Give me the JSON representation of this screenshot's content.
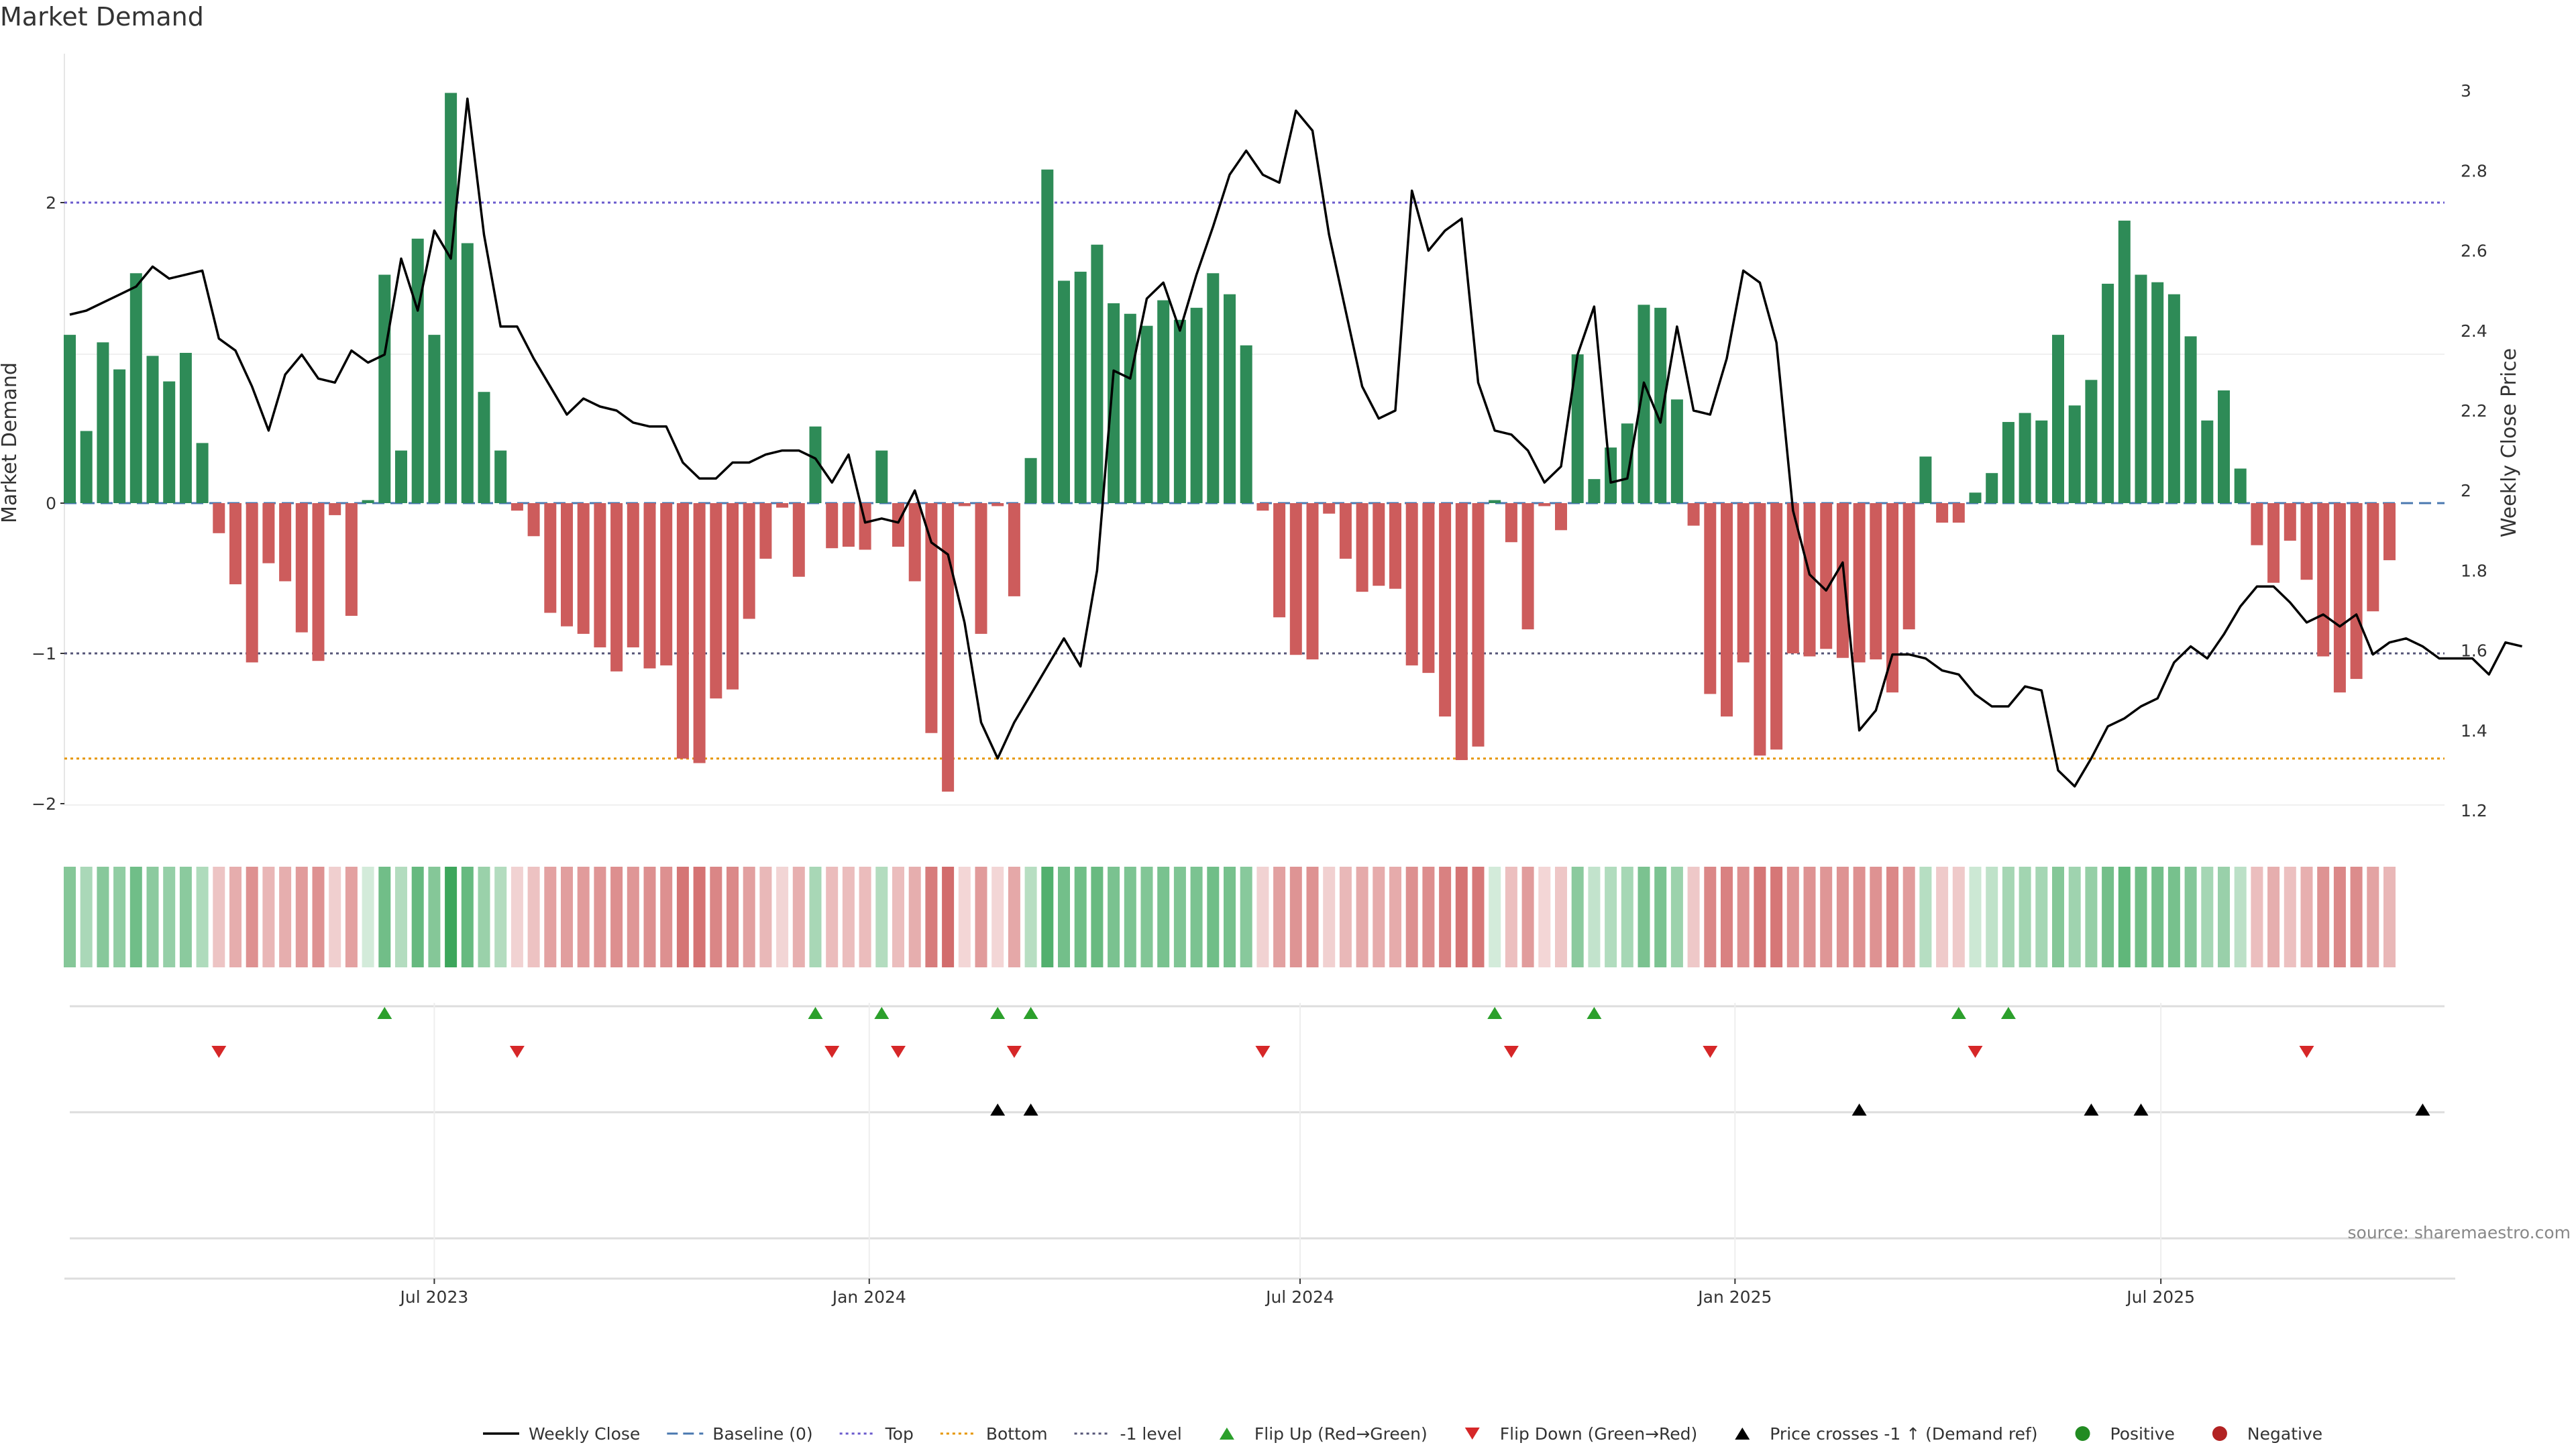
{
  "chart_data": {
    "type": "bar",
    "title": "Market Demand",
    "ylabel": "Market Demand",
    "y2label": "Weekly Close Price",
    "ylim": [
      -2.1,
      2.8
    ],
    "y2lim": [
      1.2,
      3.02
    ],
    "yticks": [
      -2,
      -1,
      0,
      2
    ],
    "ytick_labels": [
      "−2",
      "−1",
      "0",
      "2"
    ],
    "y2ticks": [
      1.2,
      1.4,
      1.6,
      1.8,
      2,
      2.2,
      2.4,
      2.6,
      2.8,
      3
    ],
    "y2tick_labels": [
      "1.2",
      "1.4",
      "1.6",
      "1.8",
      "2",
      "2.2",
      "2.4",
      "2.6",
      "2.8",
      "3"
    ],
    "xticks": [
      {
        "week": 22,
        "label": "Jul 2023"
      },
      {
        "week": 48.25,
        "label": "Jan 2024"
      },
      {
        "week": 74.25,
        "label": "Jul 2024"
      },
      {
        "week": 100.5,
        "label": "Jan 2025"
      },
      {
        "week": 126.2,
        "label": "Jul 2025"
      }
    ],
    "reference_lines": {
      "top": 2.0,
      "bottom": -1.7,
      "minus_one": -1.0,
      "baseline": 0
    },
    "series": [
      {
        "name": "Market Demand",
        "values": [
          1.12,
          0.48,
          1.07,
          0.89,
          1.53,
          0.98,
          0.81,
          1.0,
          0.4,
          -0.2,
          -0.54,
          -1.06,
          -0.4,
          -0.52,
          -0.86,
          -1.05,
          -0.08,
          -0.75,
          0.02,
          1.52,
          0.35,
          1.76,
          1.12,
          2.73,
          1.73,
          0.74,
          0.35,
          -0.05,
          -0.22,
          -0.73,
          -0.82,
          -0.87,
          -0.96,
          -1.12,
          -0.96,
          -1.1,
          -1.08,
          -1.7,
          -1.73,
          -1.3,
          -1.24,
          -0.77,
          -0.37,
          -0.03,
          -0.49,
          0.51,
          -0.3,
          -0.29,
          -0.31,
          0.35,
          -0.29,
          -0.52,
          -1.53,
          -1.92,
          -0.02,
          -0.87,
          -0.02,
          -0.62,
          0.3,
          2.22,
          1.48,
          1.54,
          1.72,
          1.33,
          1.26,
          1.18,
          1.35,
          1.22,
          1.3,
          1.53,
          1.39,
          1.05,
          -0.05,
          -0.76,
          -1.01,
          -1.04,
          -0.07,
          -0.37,
          -0.59,
          -0.55,
          -0.57,
          -1.08,
          -1.13,
          -1.42,
          -1.71,
          -1.62,
          0.02,
          -0.26,
          -0.84,
          -0.02,
          -0.18,
          0.99,
          0.16,
          0.37,
          0.53,
          1.32,
          1.3,
          0.69,
          -0.15,
          -1.27,
          -1.42,
          -1.06,
          -1.68,
          -1.64,
          -1.0,
          -1.02,
          -0.97,
          -1.03,
          -1.06,
          -1.04,
          -1.26,
          -0.84,
          0.31,
          -0.13,
          -0.13,
          0.07,
          0.2,
          0.54,
          0.6,
          0.55,
          1.12,
          0.65,
          0.82,
          1.46,
          1.88,
          1.52,
          1.47,
          1.39,
          1.11,
          0.55,
          0.75,
          0.23,
          -0.28,
          -0.53,
          -0.25,
          -0.51,
          -1.02,
          -1.26,
          -1.17,
          -0.72,
          -0.38
        ]
      },
      {
        "name": "Weekly Close",
        "values": [
          2.44,
          2.45,
          2.47,
          2.49,
          2.51,
          2.56,
          2.53,
          2.54,
          2.55,
          2.38,
          2.35,
          2.26,
          2.15,
          2.29,
          2.34,
          2.28,
          2.27,
          2.35,
          2.32,
          2.34,
          2.58,
          2.45,
          2.65,
          2.58,
          2.98,
          2.64,
          2.41,
          2.41,
          2.33,
          2.26,
          2.19,
          2.23,
          2.21,
          2.2,
          2.17,
          2.16,
          2.16,
          2.07,
          2.03,
          2.03,
          2.07,
          2.07,
          2.09,
          2.1,
          2.1,
          2.08,
          2.02,
          2.09,
          1.92,
          1.93,
          1.92,
          2.0,
          1.87,
          1.84,
          1.67,
          1.42,
          1.33,
          1.42,
          1.49,
          1.56,
          1.63,
          1.56,
          1.8,
          2.3,
          2.28,
          2.48,
          2.52,
          2.4,
          2.54,
          2.66,
          2.79,
          2.85,
          2.79,
          2.77,
          2.95,
          2.9,
          2.64,
          2.45,
          2.26,
          2.18,
          2.2,
          2.75,
          2.6,
          2.65,
          2.68,
          2.27,
          2.15,
          2.14,
          2.1,
          2.02,
          2.06,
          2.34,
          2.46,
          2.02,
          2.03,
          2.27,
          2.17,
          2.41,
          2.2,
          2.19,
          2.33,
          2.55,
          2.52,
          2.37,
          1.95,
          1.79,
          1.75,
          1.82,
          1.4,
          1.45,
          1.59,
          1.59,
          1.58,
          1.55,
          1.54,
          1.49,
          1.46,
          1.46,
          1.51,
          1.5,
          1.3,
          1.26,
          1.33,
          1.41,
          1.43,
          1.46,
          1.48,
          1.57,
          1.61,
          1.58,
          1.64,
          1.71,
          1.76,
          1.76,
          1.72,
          1.67,
          1.69,
          1.66,
          1.69,
          1.59,
          1.62,
          1.63,
          1.61,
          1.58,
          1.58,
          1.58,
          1.54,
          1.62,
          1.61
        ]
      }
    ],
    "flip_up_weeks": [
      19,
      45,
      49,
      56,
      58,
      86,
      92,
      114,
      117
    ],
    "flip_down_weeks": [
      9,
      27,
      46,
      50,
      57,
      72,
      87,
      99,
      115,
      135
    ],
    "price_cross_weeks": [
      56,
      58,
      108,
      122,
      125,
      142
    ],
    "legend": [
      {
        "label": "Weekly Close",
        "kind": "line"
      },
      {
        "label": "Baseline (0)",
        "kind": "dashed"
      },
      {
        "label": "Top",
        "kind": "dotted-purple"
      },
      {
        "label": "Bottom",
        "kind": "dotted-orange"
      },
      {
        "label": "-1 level",
        "kind": "dotted-gray"
      },
      {
        "label": "Flip Up (Red→Green)",
        "kind": "tri-up-green"
      },
      {
        "label": "Flip Down (Green→Red)",
        "kind": "tri-down-red"
      },
      {
        "label": "Price crosses -1 ↑ (Demand ref)",
        "kind": "tri-up-black"
      },
      {
        "label": "Positive",
        "kind": "dot-green"
      },
      {
        "label": "Negative",
        "kind": "dot-red"
      }
    ],
    "legend_position": "bottom-center"
  },
  "source": "source: sharemaestro.com",
  "colors": {
    "positive": "#2e8b57",
    "negative": "#cd5c5c",
    "price": "#000000",
    "top": "#6a5acd",
    "bottom": "#e69500",
    "minus_one": "#555577",
    "baseline": "#4a78b0",
    "flip_up": "#2ca02c",
    "flip_down": "#d62728",
    "dot_positive": "#228b22",
    "dot_negative": "#b22222"
  }
}
